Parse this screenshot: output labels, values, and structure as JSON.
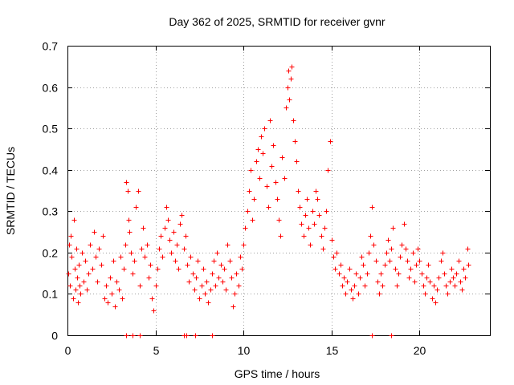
{
  "chart_data": {
    "type": "scatter",
    "title": "Day 362 of 2025, SRMTID for receiver gvnr",
    "xlabel": "GPS time / hours",
    "ylabel": "SRMTID / TECUs",
    "xlim": [
      0,
      24
    ],
    "ylim": [
      0,
      0.7
    ],
    "xticks": [
      0,
      5,
      10,
      15,
      20
    ],
    "xtick_labels": [
      "0",
      "5",
      "10",
      "15",
      "20"
    ],
    "yticks": [
      0,
      0.1,
      0.2,
      0.3,
      0.4,
      0.5,
      0.6,
      0.7
    ],
    "ytick_labels": [
      "0",
      "0.1",
      "0.2",
      "0.3",
      "0.4",
      "0.5",
      "0.6",
      "0.7"
    ],
    "grid": true,
    "marker": "plus",
    "color": "#ff0000",
    "series": [
      {
        "name": "SRMTID",
        "points": [
          [
            0.05,
            0.15
          ],
          [
            0.1,
            0.22
          ],
          [
            0.15,
            0.12
          ],
          [
            0.2,
            0.24
          ],
          [
            0.25,
            0.19
          ],
          [
            0.3,
            0.09
          ],
          [
            0.35,
            0.28
          ],
          [
            0.4,
            0.16
          ],
          [
            0.45,
            0.11
          ],
          [
            0.5,
            0.21
          ],
          [
            0.55,
            0.14
          ],
          [
            0.6,
            0.08
          ],
          [
            0.65,
            0.17
          ],
          [
            0.7,
            0.12
          ],
          [
            0.75,
            0.1
          ],
          [
            0.8,
            0.2
          ],
          [
            0.9,
            0.13
          ],
          [
            1.0,
            0.18
          ],
          [
            1.1,
            0.11
          ],
          [
            1.2,
            0.15
          ],
          [
            1.3,
            0.22
          ],
          [
            1.4,
            0.16
          ],
          [
            1.5,
            0.25
          ],
          [
            1.6,
            0.19
          ],
          [
            1.7,
            0.13
          ],
          [
            1.8,
            0.21
          ],
          [
            1.9,
            0.17
          ],
          [
            2.0,
            0.24
          ],
          [
            2.1,
            0.09
          ],
          [
            2.2,
            0.12
          ],
          [
            2.3,
            0.08
          ],
          [
            2.4,
            0.14
          ],
          [
            2.5,
            0.1
          ],
          [
            2.6,
            0.18
          ],
          [
            2.7,
            0.07
          ],
          [
            2.8,
            0.13
          ],
          [
            2.9,
            0.11
          ],
          [
            3.0,
            0.19
          ],
          [
            3.1,
            0.09
          ],
          [
            3.2,
            0.16
          ],
          [
            3.3,
            0.22
          ],
          [
            3.35,
            0.37
          ],
          [
            3.4,
            0.35
          ],
          [
            3.45,
            0.28
          ],
          [
            3.5,
            0.25
          ],
          [
            3.6,
            0.2
          ],
          [
            3.7,
            0.15
          ],
          [
            3.8,
            0.18
          ],
          [
            3.9,
            0.31
          ],
          [
            4.0,
            0.35
          ],
          [
            4.1,
            0.12
          ],
          [
            4.2,
            0.21
          ],
          [
            4.3,
            0.26
          ],
          [
            4.4,
            0.19
          ],
          [
            4.5,
            0.22
          ],
          [
            4.6,
            0.14
          ],
          [
            4.7,
            0.17
          ],
          [
            4.8,
            0.09
          ],
          [
            4.9,
            0.06
          ],
          [
            5.0,
            0.12
          ],
          [
            5.1,
            0.16
          ],
          [
            5.2,
            0.21
          ],
          [
            5.3,
            0.24
          ],
          [
            5.4,
            0.19
          ],
          [
            5.5,
            0.26
          ],
          [
            5.6,
            0.31
          ],
          [
            5.7,
            0.28
          ],
          [
            5.8,
            0.23
          ],
          [
            5.9,
            0.2
          ],
          [
            6.0,
            0.25
          ],
          [
            6.1,
            0.18
          ],
          [
            6.2,
            0.22
          ],
          [
            6.3,
            0.16
          ],
          [
            6.4,
            0.27
          ],
          [
            6.5,
            0.29
          ],
          [
            6.6,
            0.21
          ],
          [
            6.7,
            0.24
          ],
          [
            6.8,
            0.17
          ],
          [
            6.9,
            0.13
          ],
          [
            7.0,
            0.19
          ],
          [
            7.1,
            0.15
          ],
          [
            7.2,
            0.11
          ],
          [
            7.3,
            0.14
          ],
          [
            7.4,
            0.18
          ],
          [
            7.5,
            0.09
          ],
          [
            7.6,
            0.12
          ],
          [
            7.7,
            0.16
          ],
          [
            7.8,
            0.1
          ],
          [
            7.9,
            0.13
          ],
          [
            8.0,
            0.08
          ],
          [
            8.1,
            0.11
          ],
          [
            8.2,
            0.15
          ],
          [
            8.3,
            0.18
          ],
          [
            8.4,
            0.12
          ],
          [
            8.5,
            0.2
          ],
          [
            8.6,
            0.14
          ],
          [
            8.7,
            0.17
          ],
          [
            8.8,
            0.13
          ],
          [
            8.9,
            0.16
          ],
          [
            9.0,
            0.11
          ],
          [
            9.1,
            0.22
          ],
          [
            9.2,
            0.18
          ],
          [
            9.3,
            0.14
          ],
          [
            9.4,
            0.07
          ],
          [
            9.5,
            0.1
          ],
          [
            9.6,
            0.15
          ],
          [
            9.7,
            0.12
          ],
          [
            9.8,
            0.19
          ],
          [
            9.9,
            0.16
          ],
          [
            10.0,
            0.22
          ],
          [
            10.1,
            0.26
          ],
          [
            10.2,
            0.3
          ],
          [
            10.3,
            0.35
          ],
          [
            10.4,
            0.4
          ],
          [
            10.5,
            0.28
          ],
          [
            10.6,
            0.33
          ],
          [
            10.7,
            0.42
          ],
          [
            10.8,
            0.45
          ],
          [
            10.9,
            0.38
          ],
          [
            11.0,
            0.48
          ],
          [
            11.1,
            0.44
          ],
          [
            11.2,
            0.5
          ],
          [
            11.3,
            0.36
          ],
          [
            11.4,
            0.31
          ],
          [
            11.5,
            0.52
          ],
          [
            11.6,
            0.41
          ],
          [
            11.7,
            0.46
          ],
          [
            11.8,
            0.37
          ],
          [
            11.9,
            0.33
          ],
          [
            12.0,
            0.28
          ],
          [
            12.1,
            0.24
          ],
          [
            12.2,
            0.43
          ],
          [
            12.3,
            0.38
          ],
          [
            12.4,
            0.55
          ],
          [
            12.5,
            0.6
          ],
          [
            12.55,
            0.64
          ],
          [
            12.6,
            0.57
          ],
          [
            12.7,
            0.62
          ],
          [
            12.75,
            0.65
          ],
          [
            12.8,
            0.52
          ],
          [
            12.9,
            0.47
          ],
          [
            13.0,
            0.42
          ],
          [
            13.1,
            0.35
          ],
          [
            13.2,
            0.31
          ],
          [
            13.3,
            0.27
          ],
          [
            13.4,
            0.24
          ],
          [
            13.5,
            0.29
          ],
          [
            13.6,
            0.33
          ],
          [
            13.7,
            0.26
          ],
          [
            13.8,
            0.22
          ],
          [
            13.9,
            0.3
          ],
          [
            14.0,
            0.27
          ],
          [
            14.1,
            0.35
          ],
          [
            14.2,
            0.33
          ],
          [
            14.3,
            0.29
          ],
          [
            14.4,
            0.24
          ],
          [
            14.5,
            0.21
          ],
          [
            14.6,
            0.26
          ],
          [
            14.7,
            0.3
          ],
          [
            14.8,
            0.4
          ],
          [
            14.9,
            0.47
          ],
          [
            15.0,
            0.23
          ],
          [
            15.1,
            0.19
          ],
          [
            15.2,
            0.16
          ],
          [
            15.3,
            0.2
          ],
          [
            15.4,
            0.15
          ],
          [
            15.5,
            0.17
          ],
          [
            15.6,
            0.12
          ],
          [
            15.7,
            0.14
          ],
          [
            15.8,
            0.1
          ],
          [
            15.9,
            0.13
          ],
          [
            16.0,
            0.16
          ],
          [
            16.1,
            0.11
          ],
          [
            16.2,
            0.09
          ],
          [
            16.3,
            0.12
          ],
          [
            16.4,
            0.15
          ],
          [
            16.5,
            0.1
          ],
          [
            16.6,
            0.14
          ],
          [
            16.7,
            0.19
          ],
          [
            16.8,
            0.17
          ],
          [
            16.9,
            0.12
          ],
          [
            17.0,
            0.15
          ],
          [
            17.1,
            0.2
          ],
          [
            17.2,
            0.24
          ],
          [
            17.3,
            0.31
          ],
          [
            17.4,
            0.22
          ],
          [
            17.5,
            0.18
          ],
          [
            17.6,
            0.13
          ],
          [
            17.7,
            0.1
          ],
          [
            17.8,
            0.15
          ],
          [
            17.9,
            0.12
          ],
          [
            18.0,
            0.17
          ],
          [
            18.1,
            0.2
          ],
          [
            18.2,
            0.23
          ],
          [
            18.3,
            0.18
          ],
          [
            18.4,
            0.21
          ],
          [
            18.5,
            0.26
          ],
          [
            18.6,
            0.16
          ],
          [
            18.7,
            0.12
          ],
          [
            18.8,
            0.15
          ],
          [
            18.9,
            0.19
          ],
          [
            19.0,
            0.22
          ],
          [
            19.1,
            0.27
          ],
          [
            19.2,
            0.21
          ],
          [
            19.3,
            0.18
          ],
          [
            19.4,
            0.14
          ],
          [
            19.5,
            0.16
          ],
          [
            19.6,
            0.2
          ],
          [
            19.7,
            0.13
          ],
          [
            19.8,
            0.17
          ],
          [
            19.9,
            0.21
          ],
          [
            20.0,
            0.18
          ],
          [
            20.1,
            0.15
          ],
          [
            20.2,
            0.12
          ],
          [
            20.3,
            0.1
          ],
          [
            20.4,
            0.14
          ],
          [
            20.5,
            0.17
          ],
          [
            20.6,
            0.13
          ],
          [
            20.7,
            0.09
          ],
          [
            20.8,
            0.12
          ],
          [
            20.9,
            0.08
          ],
          [
            21.0,
            0.11
          ],
          [
            21.1,
            0.14
          ],
          [
            21.2,
            0.18
          ],
          [
            21.3,
            0.2
          ],
          [
            21.4,
            0.15
          ],
          [
            21.5,
            0.12
          ],
          [
            21.6,
            0.1
          ],
          [
            21.7,
            0.13
          ],
          [
            21.8,
            0.16
          ],
          [
            21.9,
            0.14
          ],
          [
            22.0,
            0.12
          ],
          [
            22.1,
            0.15
          ],
          [
            22.2,
            0.18
          ],
          [
            22.3,
            0.13
          ],
          [
            22.4,
            0.11
          ],
          [
            22.5,
            0.16
          ],
          [
            22.6,
            0.14
          ],
          [
            22.7,
            0.21
          ],
          [
            22.75,
            0.17
          ],
          [
            3.35,
            0.0
          ],
          [
            3.7,
            0.0
          ],
          [
            4.1,
            0.0
          ],
          [
            6.6,
            0.0
          ],
          [
            6.75,
            0.0
          ],
          [
            7.25,
            0.0
          ],
          [
            8.2,
            0.0
          ],
          [
            17.3,
            0.0
          ],
          [
            18.4,
            0.0
          ]
        ]
      }
    ]
  }
}
